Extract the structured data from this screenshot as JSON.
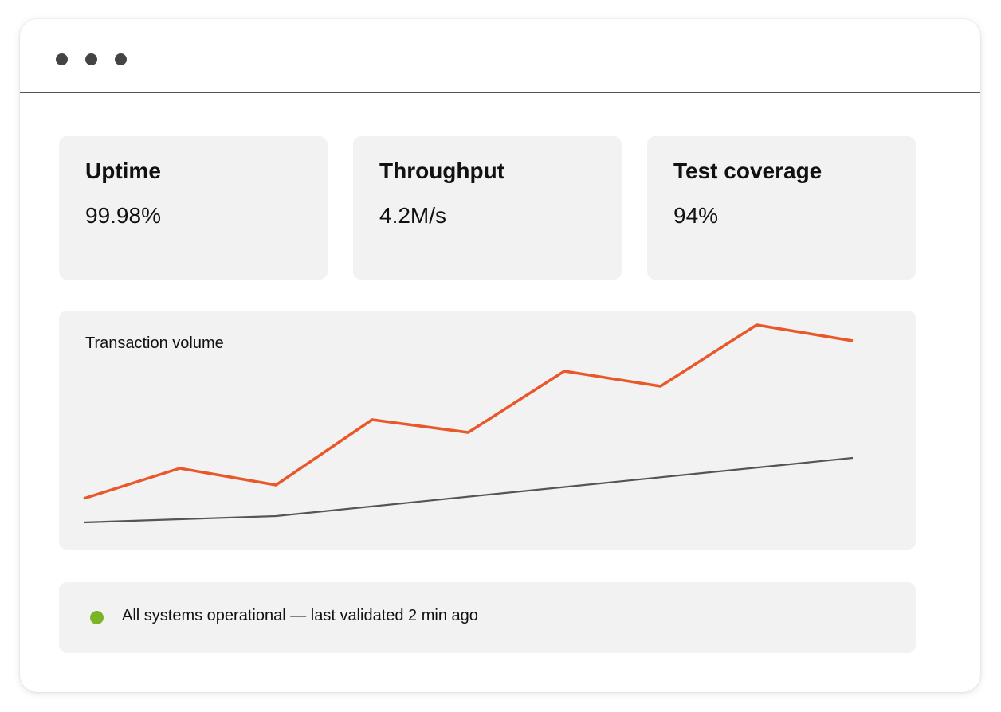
{
  "window": {
    "controls": [
      "window-dot-1",
      "window-dot-2",
      "window-dot-3"
    ]
  },
  "metrics": [
    {
      "title": "Uptime",
      "value": "99.98%"
    },
    {
      "title": "Throughput",
      "value": "4.2M/s"
    },
    {
      "title": "Test coverage",
      "value": "94%"
    }
  ],
  "chart": {
    "title": "Transaction volume"
  },
  "chart_data": {
    "type": "line",
    "title": "Transaction volume",
    "xlabel": "",
    "ylabel": "",
    "x": [
      1,
      2,
      3,
      4,
      5,
      6,
      7,
      8,
      9
    ],
    "xlim": [
      1,
      9
    ],
    "ylim": [
      0,
      300
    ],
    "grid": false,
    "series": [
      {
        "values": [
          64,
          102,
          81,
          163,
          147,
          224,
          205,
          282,
          262
        ],
        "color": "#e8582a"
      },
      {
        "values": [
          34,
          null,
          42,
          null,
          null,
          null,
          null,
          null,
          115
        ],
        "color": "#555555"
      }
    ]
  },
  "status": {
    "text": "All systems operational — last validated 2 min ago",
    "color": "#7ab527"
  },
  "colors": {
    "accent": "#e8582a",
    "baseline": "#555555",
    "panel": "#f2f2f2",
    "ok": "#7ab527"
  }
}
